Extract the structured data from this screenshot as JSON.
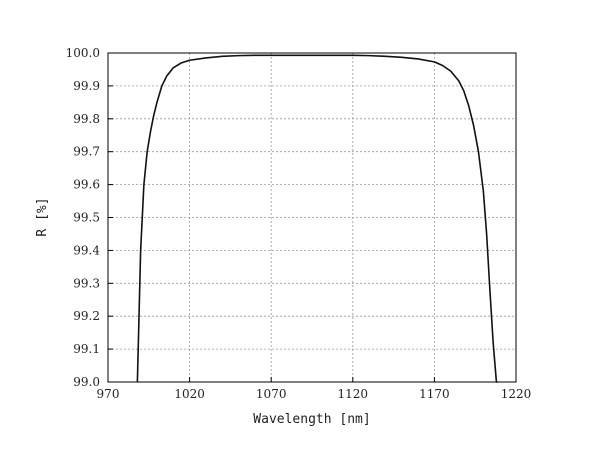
{
  "chart_data": {
    "type": "line",
    "title": "",
    "xlabel": "Wavelength [nm]",
    "ylabel": "R [%]",
    "xlim": [
      970,
      1220
    ],
    "ylim": [
      99.0,
      100.0
    ],
    "xticks": [
      "970",
      "1020",
      "1070",
      "1120",
      "1170",
      "1220"
    ],
    "yticks": [
      "99.0",
      "99.1",
      "99.2",
      "99.3",
      "99.4",
      "99.5",
      "99.6",
      "99.7",
      "99.8",
      "99.9",
      "100.0"
    ],
    "grid": true,
    "legend": "none",
    "line_color": "#111111",
    "series": [
      {
        "x": [
          988,
          989,
          990,
          992,
          994,
          996,
          998,
          1000,
          1003,
          1006,
          1010,
          1015,
          1020,
          1030,
          1040,
          1050,
          1060,
          1070,
          1080,
          1090,
          1100,
          1110,
          1120,
          1130,
          1140,
          1150,
          1160,
          1170,
          1175,
          1180,
          1185,
          1188,
          1191,
          1194,
          1197,
          1200,
          1202,
          1204,
          1206,
          1208,
          1209
        ],
        "y": [
          99.0,
          99.2,
          99.4,
          99.6,
          99.7,
          99.76,
          99.81,
          99.85,
          99.9,
          99.93,
          99.955,
          99.97,
          99.978,
          99.985,
          99.99,
          99.992,
          99.993,
          99.993,
          99.993,
          99.993,
          99.993,
          99.993,
          99.993,
          99.992,
          99.99,
          99.987,
          99.982,
          99.973,
          99.962,
          99.945,
          99.915,
          99.885,
          99.84,
          99.78,
          99.7,
          99.58,
          99.45,
          99.28,
          99.12,
          99.0,
          99.0
        ]
      }
    ]
  }
}
